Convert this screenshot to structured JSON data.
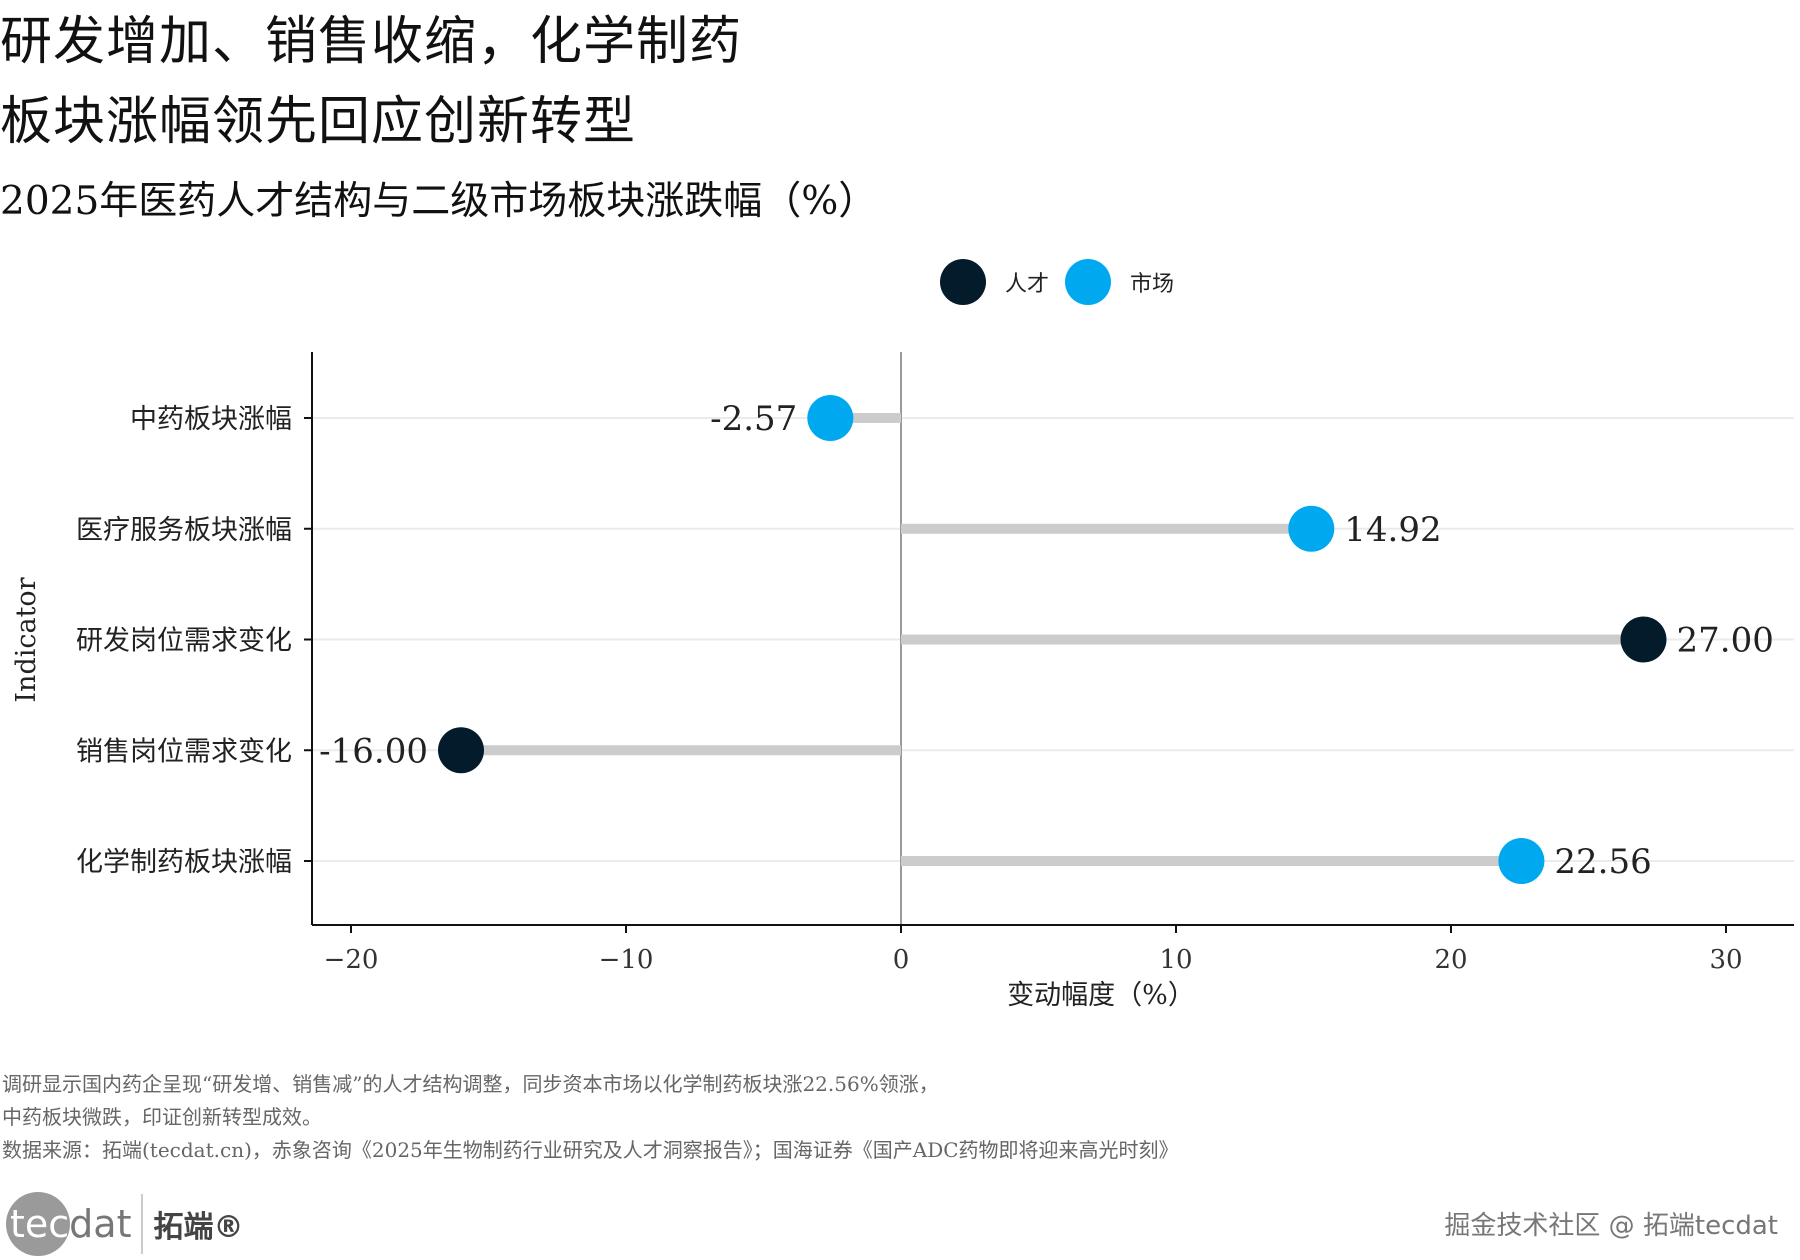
{
  "title_line1": "研发增加、销售收缩，化学制药",
  "title_line2": "板块涨幅领先回应创新转型",
  "subtitle": "2025年医药人才结构与二级市场板块涨跌幅（%）",
  "chart_data": {
    "type": "lollipop",
    "categories": [
      "中药板块涨幅",
      "医疗服务板块涨幅",
      "研发岗位需求变化",
      "销售岗位需求变化",
      "化学制药板块涨幅"
    ],
    "values": [
      -2.57,
      14.92,
      27.0,
      -16.0,
      22.56
    ],
    "labels": [
      "-2.57",
      "14.92",
      "27.00",
      "-16.00",
      "22.56"
    ],
    "groups": [
      "市场",
      "市场",
      "人才",
      "人才",
      "市场"
    ],
    "legend": [
      {
        "name": "人才",
        "color": "#041b2b"
      },
      {
        "name": "市场",
        "color": "#00a8f0"
      }
    ],
    "legend_position": "top",
    "xlabel": "变动幅度（%）",
    "ylabel": "Indicator",
    "xlim": [
      -21.5,
      32
    ],
    "xticks": [
      -20,
      -10,
      0,
      10,
      20,
      30
    ],
    "xtick_labels": [
      "−20",
      "−10",
      "0",
      "10",
      "20",
      "30"
    ],
    "grid": "horizontal"
  },
  "footer": {
    "note1": "调研显示国内药企呈现“研发增、销售减”的人才结构调整，同步资本市场以化学制药板块涨22.56%领涨，",
    "note2": "中药板块微跌，印证创新转型成效。",
    "source": "数据来源：拓端(tecdat.cn)，赤象咨询《2025年生物制药行业研究及人才洞察报告》；国海证券《国产ADC药物即将迎来高光时刻》"
  },
  "logo": {
    "text_a": "tec",
    "text_b": "dat",
    "cn": "拓端®"
  },
  "watermark": "掘金技术社区 @ 拓端tecdat"
}
